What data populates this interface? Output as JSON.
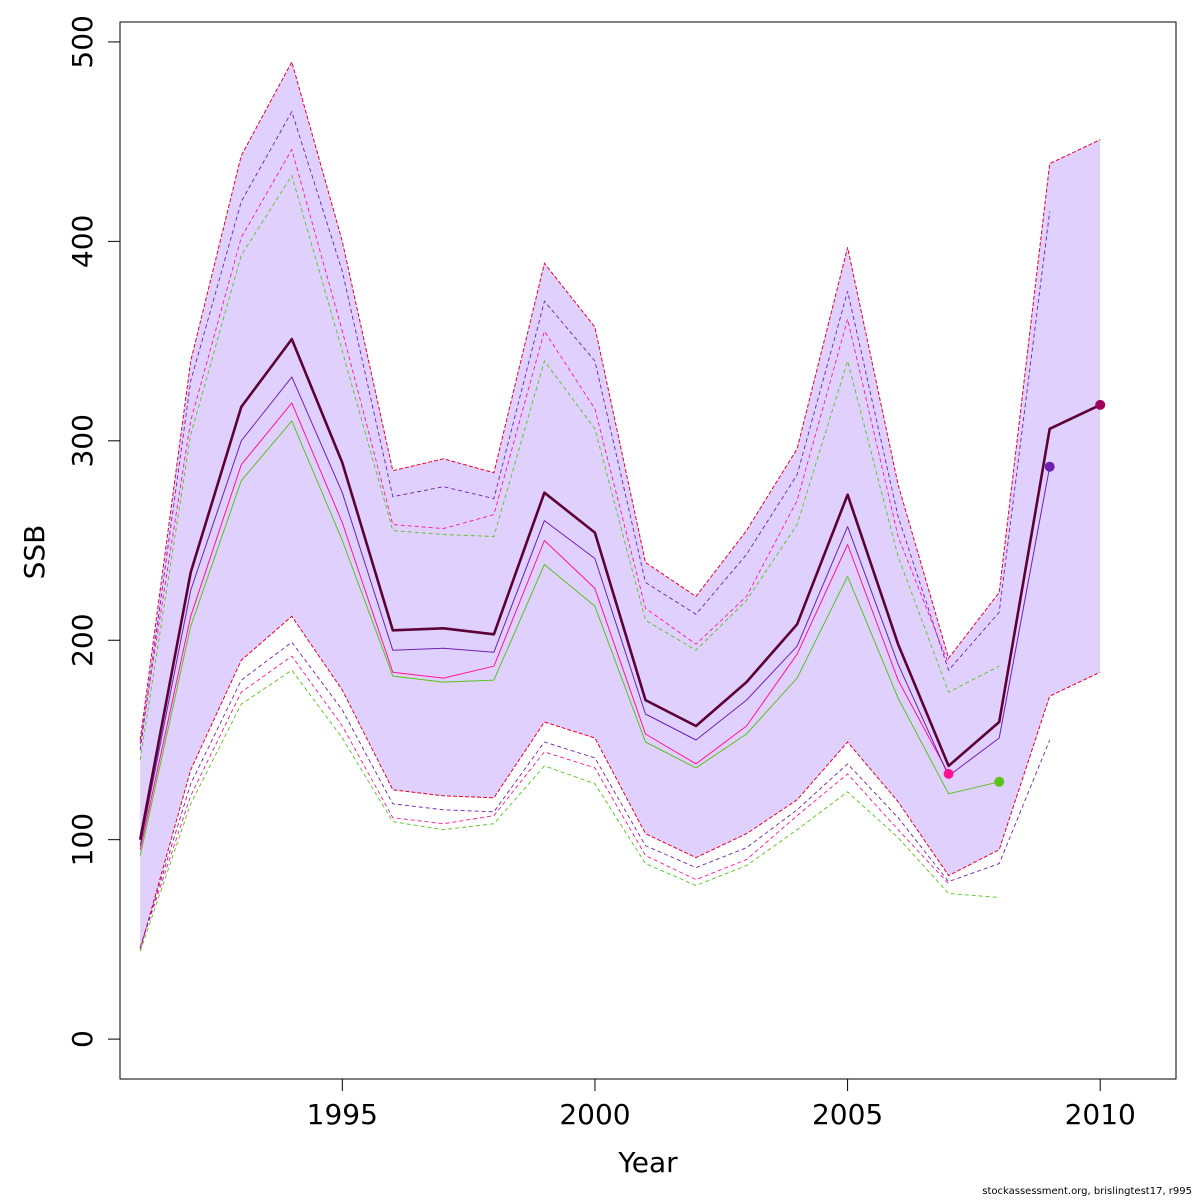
{
  "chart_data": {
    "type": "line",
    "title": "",
    "xlabel": "Year",
    "ylabel": "SSB",
    "xlim": [
      1990.6,
      2011.5
    ],
    "ylim": [
      -20,
      510
    ],
    "x_ticks": [
      1995,
      2000,
      2005,
      2010
    ],
    "y_ticks": [
      0,
      100,
      200,
      300,
      400,
      500
    ],
    "grid": false,
    "colors": {
      "band": "#e0d0fe",
      "band_edge": "#e8002a",
      "current": "#5c0035",
      "run_purple": "#7020b0",
      "run_pink": "#ff1493",
      "run_green": "#59c21c",
      "end_point_current": "#a0005a"
    },
    "band": {
      "x": [
        1991,
        1992,
        1993,
        1994,
        1995,
        1996,
        1997,
        1998,
        1999,
        2000,
        2001,
        2002,
        2003,
        2004,
        2005,
        2006,
        2007,
        2008,
        2009,
        2010
      ],
      "upper": [
        150,
        340,
        443,
        490,
        400,
        285,
        291,
        284,
        389,
        357,
        239,
        222,
        255,
        296,
        397,
        278,
        191,
        224,
        439,
        451
      ],
      "lower": [
        45,
        135,
        190,
        212,
        175,
        125,
        122,
        121,
        159,
        151,
        103,
        91,
        103,
        120,
        149,
        119,
        82,
        95,
        172,
        184
      ]
    },
    "series": [
      {
        "x": [
          1991,
          1992,
          1993,
          1994,
          1995,
          1996,
          1997,
          1998,
          1999,
          2000,
          2001,
          2002,
          2003,
          2004,
          2005,
          2006,
          2007,
          2008,
          2009,
          2010
        ],
        "values": [
          100,
          234,
          317,
          351,
          289,
          205,
          206,
          203,
          274,
          254,
          170,
          157,
          179,
          208,
          273,
          198,
          137,
          159,
          306,
          318
        ],
        "end_point": [
          2010,
          318
        ]
      },
      {
        "x": [
          1991,
          1992,
          1993,
          1994,
          1995,
          1996,
          1997,
          1998,
          1999,
          2000,
          2001,
          2002,
          2003,
          2004,
          2005,
          2006,
          2007,
          2008,
          2009
        ],
        "values": [
          97,
          225,
          300,
          332,
          274,
          195,
          196,
          194,
          260,
          241,
          163,
          150,
          170,
          197,
          257,
          188,
          132,
          151,
          287
        ],
        "upper": [
          145,
          330,
          420,
          465,
          385,
          272,
          277,
          271,
          370,
          340,
          229,
          213,
          243,
          283,
          375,
          262,
          185,
          214,
          415
        ],
        "lower": [
          46,
          128,
          180,
          199,
          165,
          118,
          115,
          114,
          149,
          141,
          97,
          86,
          96,
          115,
          138,
          111,
          79,
          88,
          150
        ],
        "end_point": [
          2009,
          287
        ]
      },
      {
        "x": [
          1991,
          1992,
          1993,
          1994,
          1995,
          1996,
          1997,
          1998,
          1999,
          2000,
          2001,
          2002,
          2003,
          2004,
          2005,
          2006,
          2007
        ],
        "values": [
          95,
          212,
          288,
          319,
          259,
          184,
          181,
          187,
          250,
          226,
          153,
          138,
          157,
          193,
          248,
          180,
          133
        ],
        "upper": [
          148,
          310,
          402,
          446,
          355,
          258,
          256,
          263,
          355,
          316,
          216,
          198,
          222,
          270,
          361,
          252,
          188
        ],
        "lower": [
          46,
          122,
          174,
          192,
          157,
          111,
          108,
          112,
          144,
          136,
          92,
          80,
          90,
          112,
          133,
          105,
          78
        ],
        "end_point": [
          2007,
          133
        ]
      },
      {
        "x": [
          1991,
          1992,
          1993,
          1994,
          1995,
          1996,
          1997,
          1998,
          1999,
          2000,
          2001,
          2002,
          2003,
          2004,
          2005,
          2006,
          2007,
          2008
        ],
        "values": [
          92,
          207,
          280,
          310,
          250,
          182,
          179,
          180,
          238,
          217,
          149,
          136,
          153,
          181,
          232,
          171,
          123,
          129
        ],
        "upper": [
          140,
          303,
          393,
          433,
          345,
          255,
          253,
          252,
          340,
          306,
          210,
          195,
          220,
          258,
          340,
          242,
          174,
          187
        ],
        "lower": [
          44,
          118,
          168,
          185,
          151,
          109,
          105,
          108,
          137,
          128,
          88,
          77,
          87,
          105,
          124,
          101,
          73,
          71
        ],
        "end_point": [
          2008,
          129
        ]
      }
    ]
  },
  "footer": "stockassessment.org, brislingtest17, r995"
}
